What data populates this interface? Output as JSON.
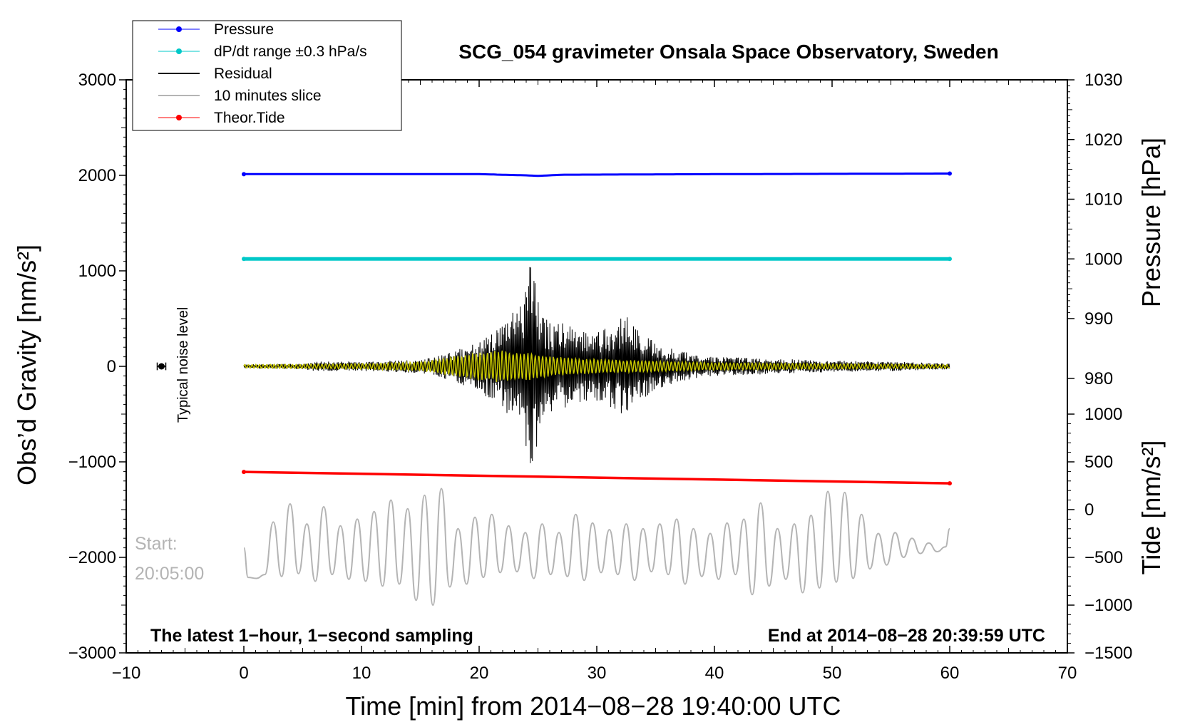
{
  "chart_data": {
    "type": "line",
    "title": "SCG_054 gravimeter Onsala Space Observatory, Sweden",
    "xlabel": "Time [min] from 2014−08−28 19:40:00 UTC",
    "ylabel_left": "Obs’d Gravity [nm/s²]",
    "ylabel_right_top": "Pressure [hPa]",
    "ylabel_right_bottom": "Tide [nm/s²]",
    "xlim": [
      -10,
      70
    ],
    "ylim_left": [
      -3000,
      3000
    ],
    "x_ticks": [
      -10,
      0,
      10,
      20,
      30,
      40,
      50,
      60,
      70
    ],
    "x_tick_labels": [
      "−10",
      "0",
      "10",
      "20",
      "30",
      "40",
      "50",
      "60",
      "70"
    ],
    "y_ticks_left": [
      3000,
      2000,
      1000,
      0,
      -1000,
      -2000,
      -3000
    ],
    "y_tick_labels_left": [
      "3000",
      "2000",
      "1000",
      "0",
      "−1000",
      "−2000",
      "−3000"
    ],
    "pressure_axis": {
      "ticks": [
        1030,
        1020,
        1010,
        1000,
        990,
        980
      ],
      "tick_labels": [
        "1030",
        "1020",
        "1010",
        "1000",
        "990",
        "980"
      ],
      "hpa_at_gravity_3000": 1030,
      "hpa_at_gravity_500": 990
    },
    "tide_axis": {
      "ticks": [
        1000,
        500,
        0,
        -500,
        -1000,
        -1500
      ],
      "tick_labels": [
        "1000",
        "500",
        "0",
        "−500",
        "−1000",
        "−1500"
      ],
      "tide_at_gravity_minus1500": 0,
      "tide_per_gravity_unit": 1
    },
    "legend": [
      {
        "label": "Pressure",
        "color": "#0000ff",
        "marker": true
      },
      {
        "label": "dP/dt range ±0.3 hPa/s",
        "color": "#00c8c8",
        "marker": true
      },
      {
        "label": "Residual",
        "color": "#000000",
        "marker": false
      },
      {
        "label": "10 minutes slice",
        "color": "#b4b4b4",
        "marker": false
      },
      {
        "label": "Theor.Tide",
        "color": "#ff0000",
        "marker": true
      }
    ],
    "series": [
      {
        "name": "Pressure",
        "axis": "pressure",
        "color": "#0000ff",
        "x": [
          0,
          20,
          24,
          25,
          27,
          40,
          60
        ],
        "values": [
          1014.2,
          1014.2,
          1014.0,
          1013.9,
          1014.1,
          1014.2,
          1014.3
        ]
      },
      {
        "name": "dP/dt range ±0.3 hPa/s",
        "axis": "pressure",
        "color": "#00c8c8",
        "x": [
          0,
          60
        ],
        "values": [
          1000.0,
          1000.0
        ],
        "range_hpa": 0.3
      },
      {
        "name": "Residual",
        "axis": "gravity",
        "color": "#000000",
        "envelope_x": [
          0,
          5,
          6,
          10,
          15,
          18,
          20,
          22,
          23.5,
          24.2,
          24.6,
          25.5,
          27,
          29,
          31,
          32.5,
          33.5,
          35,
          37,
          40,
          45,
          50,
          55,
          60
        ],
        "envelope_values": [
          20,
          30,
          50,
          50,
          70,
          160,
          280,
          420,
          700,
          1050,
          1050,
          500,
          460,
          380,
          420,
          540,
          400,
          240,
          160,
          100,
          80,
          60,
          50,
          30
        ]
      },
      {
        "name": "Filtered residual",
        "axis": "gravity",
        "color": "#c8c800",
        "envelope_x": [
          0,
          10,
          15,
          18,
          20,
          22,
          24,
          26,
          28,
          30,
          35,
          40,
          50,
          60
        ],
        "envelope_values": [
          20,
          30,
          50,
          110,
          150,
          170,
          150,
          110,
          90,
          75,
          60,
          40,
          30,
          20
        ]
      },
      {
        "name": "Theor.Tide",
        "axis": "tide",
        "color": "#ff0000",
        "x": [
          0,
          60
        ],
        "values": [
          395,
          275
        ]
      },
      {
        "name": "10 minutes slice",
        "axis": "gravity",
        "color": "#b4b4b4",
        "x_range": [
          0,
          60
        ],
        "baseline": -1900,
        "peaks": [
          -2220,
          -1630,
          -1440,
          -1650,
          -1470,
          -1670,
          -1600,
          -1520,
          -1400,
          -1490,
          -1350,
          -1280,
          -1700,
          -1580,
          -1550,
          -1670,
          -1740,
          -1650,
          -1740,
          -1550,
          -1640,
          -1710,
          -1650,
          -1700,
          -1650,
          -1600,
          -1700,
          -1750,
          -1640,
          -1600,
          -1430,
          -1700,
          -1650,
          -1560,
          -1310,
          -1320,
          -1550,
          -1750,
          -1740,
          -1800,
          -1850,
          -1890
        ],
        "troughs": [
          -2210,
          -2180,
          -2200,
          -2170,
          -2250,
          -2180,
          -2230,
          -2250,
          -2300,
          -2280,
          -2450,
          -2500,
          -2310,
          -2280,
          -2210,
          -2160,
          -2150,
          -2220,
          -2180,
          -2200,
          -2240,
          -2160,
          -2180,
          -2240,
          -2150,
          -2180,
          -2280,
          -2200,
          -2230,
          -2180,
          -2390,
          -2300,
          -2230,
          -2370,
          -2320,
          -2260,
          -2220,
          -2120,
          -2080,
          -2000,
          -1960,
          -1940
        ]
      }
    ],
    "noise_marker": {
      "x": -7.0,
      "y": 0,
      "error": 40
    },
    "grid": false,
    "legend_position": "top-left"
  },
  "annotations": {
    "bottom_left": "The latest 1−hour, 1−second sampling",
    "bottom_right": "End at 2014−08−28 20:39:59 UTC",
    "slice_start_line1": "Start:",
    "slice_start_line2": "20:05:00",
    "noise_label": "Typical noise level"
  }
}
